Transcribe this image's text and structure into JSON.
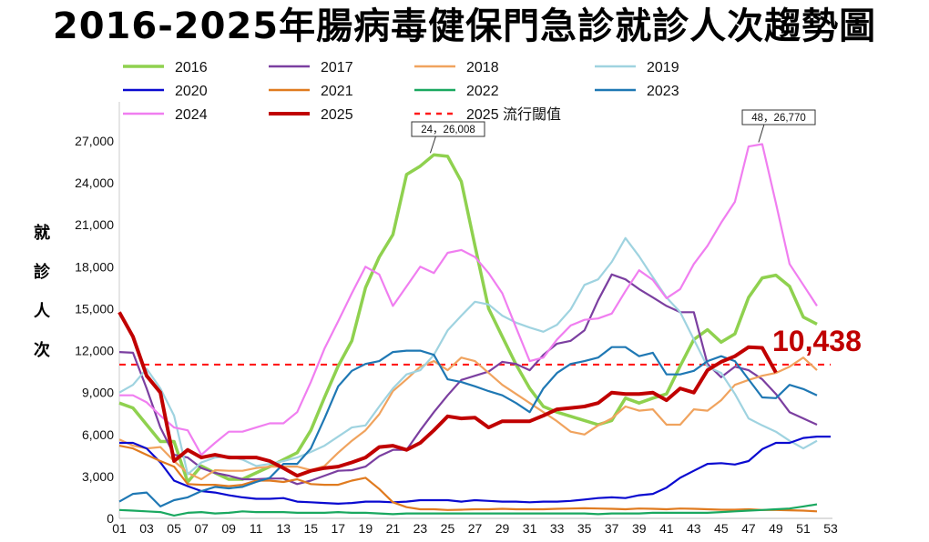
{
  "title": "2016-2025年腸病毒健保門急診就診人次趨勢圖",
  "chart_data": {
    "type": "line",
    "title": "2016-2025年腸病毒健保門急診就診人次趨勢圖",
    "xlabel": "",
    "ylabel": "就診人次",
    "x_ticks": [
      "01",
      "03",
      "05",
      "07",
      "09",
      "11",
      "13",
      "15",
      "17",
      "19",
      "21",
      "23",
      "25",
      "27",
      "29",
      "31",
      "33",
      "35",
      "37",
      "39",
      "41",
      "43",
      "45",
      "47",
      "49",
      "51",
      "53"
    ],
    "xlim": [
      1,
      53
    ],
    "ylim": [
      0,
      27000
    ],
    "y_ticks": [
      0,
      3000,
      6000,
      9000,
      12000,
      15000,
      18000,
      21000,
      24000,
      27000
    ],
    "grid": false,
    "legend": "top",
    "threshold": {
      "name": "2025 流行閾值",
      "value": 11000,
      "color": "#ff1a1a"
    },
    "annotations": [
      {
        "text": "24，26,008",
        "week": 24,
        "value": 26008
      },
      {
        "text": "48，26,770",
        "week": 48,
        "value": 26770
      },
      {
        "text": "10,438",
        "week": 49,
        "value": 10438,
        "color": "#c00000"
      }
    ],
    "series": [
      {
        "name": "2016",
        "color": "#8fd14f",
        "width": 3.5,
        "values": [
          8250,
          7900,
          6700,
          5500,
          5500,
          2600,
          3750,
          3250,
          2800,
          2800,
          3250,
          3700,
          4200,
          4700,
          6300,
          8650,
          10900,
          12700,
          16500,
          18700,
          20300,
          24600,
          25200,
          26008,
          25900,
          24100,
          19500,
          15000,
          13000,
          11000,
          9300,
          8000,
          7600,
          7300,
          7000,
          6700,
          7000,
          8600,
          8250,
          8600,
          8900,
          10900,
          12800,
          13500,
          12600,
          13200,
          15800,
          17200,
          17400,
          16600,
          14400,
          13900
        ]
      },
      {
        "name": "2017",
        "color": "#7b3fa0",
        "width": 2.2,
        "values": [
          11900,
          11850,
          9300,
          6500,
          4550,
          4350,
          3600,
          3250,
          3050,
          2800,
          2800,
          2850,
          2850,
          2450,
          2700,
          3050,
          3400,
          3450,
          3700,
          4450,
          4900,
          4900,
          6300,
          7600,
          8800,
          9900,
          10200,
          10500,
          11200,
          11050,
          10600,
          11700,
          12500,
          12700,
          13450,
          15600,
          17450,
          17100,
          16400,
          15800,
          15200,
          14750,
          14750,
          11050,
          10100,
          10850,
          10600,
          9950,
          8900,
          7600,
          7150,
          6700
        ]
      },
      {
        "name": "2018",
        "color": "#f0a35e",
        "width": 2.2,
        "values": [
          5650,
          5200,
          5000,
          5100,
          4100,
          3250,
          2800,
          3450,
          3400,
          3400,
          3600,
          3700,
          3700,
          3700,
          3450,
          3750,
          4700,
          5550,
          6300,
          7450,
          9100,
          9950,
          10850,
          11250,
          10600,
          11500,
          11250,
          10400,
          9550,
          8900,
          8250,
          7600,
          6950,
          6200,
          6000,
          6650,
          7150,
          8000,
          7700,
          7800,
          6700,
          6700,
          7800,
          7700,
          8450,
          9550,
          9900,
          10200,
          10400,
          10850,
          11500,
          10600
        ]
      },
      {
        "name": "2019",
        "color": "#9fd3e0",
        "width": 2.2,
        "values": [
          9000,
          9550,
          10700,
          9300,
          7350,
          3150,
          4000,
          4350,
          4450,
          4200,
          3750,
          3900,
          4100,
          4350,
          4750,
          5200,
          5850,
          6500,
          6650,
          8000,
          9300,
          10300,
          10600,
          11700,
          13450,
          14500,
          15500,
          15300,
          14500,
          14000,
          13650,
          13350,
          13850,
          14950,
          16700,
          17100,
          18350,
          20050,
          18750,
          17250,
          15800,
          14750,
          12800,
          10850,
          10400,
          8900,
          7150,
          6650,
          6200,
          5550,
          5000,
          5550
        ]
      },
      {
        "name": "2020",
        "color": "#0a0ad0",
        "width": 2.2,
        "values": [
          5400,
          5400,
          5000,
          4000,
          2700,
          2300,
          1950,
          1850,
          1650,
          1500,
          1400,
          1400,
          1450,
          1200,
          1150,
          1100,
          1050,
          1100,
          1200,
          1200,
          1150,
          1200,
          1300,
          1300,
          1300,
          1200,
          1300,
          1250,
          1200,
          1200,
          1150,
          1200,
          1200,
          1250,
          1350,
          1450,
          1500,
          1450,
          1650,
          1750,
          2200,
          2900,
          3400,
          3900,
          3950,
          3850,
          4100,
          4950,
          5400,
          5400,
          5750,
          5850,
          5850
        ]
      },
      {
        "name": "2021",
        "color": "#e07b20",
        "width": 2.2,
        "values": [
          5200,
          5000,
          4550,
          4100,
          3700,
          2450,
          2400,
          2400,
          2300,
          2400,
          2700,
          2700,
          2600,
          2800,
          2450,
          2400,
          2400,
          2700,
          2900,
          2100,
          1150,
          800,
          650,
          650,
          600,
          620,
          650,
          650,
          680,
          650,
          650,
          650,
          680,
          700,
          720,
          700,
          680,
          650,
          700,
          680,
          650,
          700,
          680,
          650,
          620,
          620,
          650,
          600,
          600,
          580,
          550,
          500
        ]
      },
      {
        "name": "2022",
        "color": "#1aa860",
        "width": 2.2,
        "values": [
          600,
          550,
          500,
          450,
          200,
          400,
          450,
          350,
          400,
          500,
          450,
          450,
          450,
          400,
          400,
          400,
          450,
          400,
          400,
          350,
          300,
          350,
          350,
          350,
          350,
          350,
          350,
          350,
          350,
          350,
          350,
          350,
          350,
          350,
          350,
          300,
          350,
          350,
          350,
          400,
          400,
          400,
          400,
          400,
          450,
          500,
          550,
          600,
          650,
          700,
          850,
          1000
        ]
      },
      {
        "name": "2023",
        "color": "#1f78b4",
        "width": 2.2,
        "values": [
          1200,
          1750,
          1850,
          850,
          1300,
          1500,
          1950,
          2250,
          2150,
          2250,
          2600,
          2900,
          3900,
          3900,
          5000,
          7150,
          9450,
          10550,
          11050,
          11250,
          11900,
          12000,
          12000,
          11700,
          9950,
          9750,
          9450,
          9100,
          8800,
          8250,
          7600,
          9300,
          10400,
          11050,
          11250,
          11500,
          12250,
          12250,
          11600,
          11850,
          10300,
          10300,
          10550,
          11250,
          11600,
          11250,
          9950,
          8650,
          8600,
          9550,
          9250,
          8800
        ]
      },
      {
        "name": "2024",
        "color": "#f07ef0",
        "width": 2.2,
        "values": [
          8800,
          8800,
          8300,
          7350,
          6500,
          6300,
          4550,
          5400,
          6200,
          6200,
          6500,
          6800,
          6800,
          7600,
          9750,
          12150,
          14100,
          16100,
          18000,
          17450,
          15200,
          16600,
          18000,
          17550,
          19000,
          19200,
          18700,
          17550,
          16100,
          13650,
          11250,
          11500,
          12800,
          13800,
          14200,
          14300,
          14650,
          16250,
          17750,
          17050,
          15750,
          16400,
          18200,
          19500,
          21150,
          22650,
          26600,
          26770,
          22550,
          18200,
          16700,
          15200
        ]
      },
      {
        "name": "2025",
        "color": "#c00000",
        "width": 4,
        "values": [
          14750,
          13000,
          10200,
          9000,
          4100,
          4900,
          4350,
          4550,
          4350,
          4350,
          4350,
          4100,
          3600,
          3050,
          3400,
          3600,
          3700,
          4000,
          4350,
          5100,
          5200,
          4900,
          5400,
          6300,
          7300,
          7150,
          7200,
          6500,
          6950,
          6950,
          6950,
          7350,
          7800,
          7900,
          8000,
          8250,
          9000,
          8900,
          8900,
          9000,
          8450,
          9300,
          9000,
          10600,
          11200,
          11600,
          12250,
          12200,
          10438
        ]
      }
    ]
  }
}
